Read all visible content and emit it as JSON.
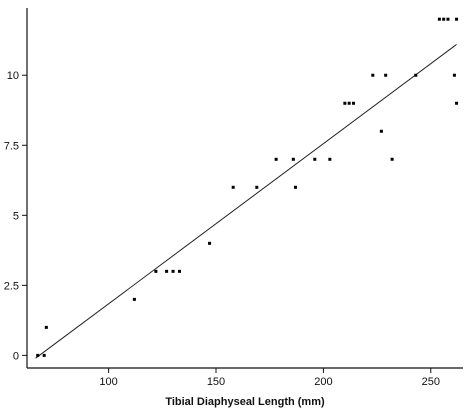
{
  "chart_data": {
    "type": "scatter",
    "title": "",
    "xlabel": "Tibial Diaphyseal Length (mm)",
    "ylabel": "",
    "xlim": [
      62,
      265
    ],
    "ylim": [
      -0.45,
      12.4
    ],
    "x_ticks": [
      100,
      150,
      200,
      250
    ],
    "x_tick_labels": [
      "100",
      "150",
      "200",
      "250"
    ],
    "y_ticks": [
      0,
      2.5,
      5,
      7.5,
      10
    ],
    "y_tick_labels": [
      "0",
      "2.5",
      "5",
      "7.5",
      "10"
    ],
    "grid": false,
    "legend": "none",
    "series": [
      {
        "points": [
          [
            67,
            0
          ],
          [
            70,
            0
          ],
          [
            71,
            1
          ],
          [
            112,
            2
          ],
          [
            122,
            3
          ],
          [
            127,
            3
          ],
          [
            130,
            3
          ],
          [
            133,
            3
          ],
          [
            147,
            4
          ],
          [
            158,
            6
          ],
          [
            169,
            6
          ],
          [
            178,
            7
          ],
          [
            186,
            7
          ],
          [
            187,
            6
          ],
          [
            196,
            7
          ],
          [
            203,
            7
          ],
          [
            210,
            9
          ],
          [
            212,
            9
          ],
          [
            214,
            9
          ],
          [
            223,
            10
          ],
          [
            227,
            8
          ],
          [
            229,
            10
          ],
          [
            232,
            7
          ],
          [
            243,
            10
          ],
          [
            254,
            12
          ],
          [
            256,
            12
          ],
          [
            258,
            12
          ],
          [
            262,
            12
          ],
          [
            261,
            10
          ],
          [
            262,
            9
          ]
        ]
      }
    ],
    "fit_line": {
      "x": [
        66,
        262
      ],
      "y": [
        -0.1,
        11.1
      ]
    },
    "colors": {
      "points": "#000000",
      "line": "#222222",
      "axes": "#111111"
    }
  }
}
